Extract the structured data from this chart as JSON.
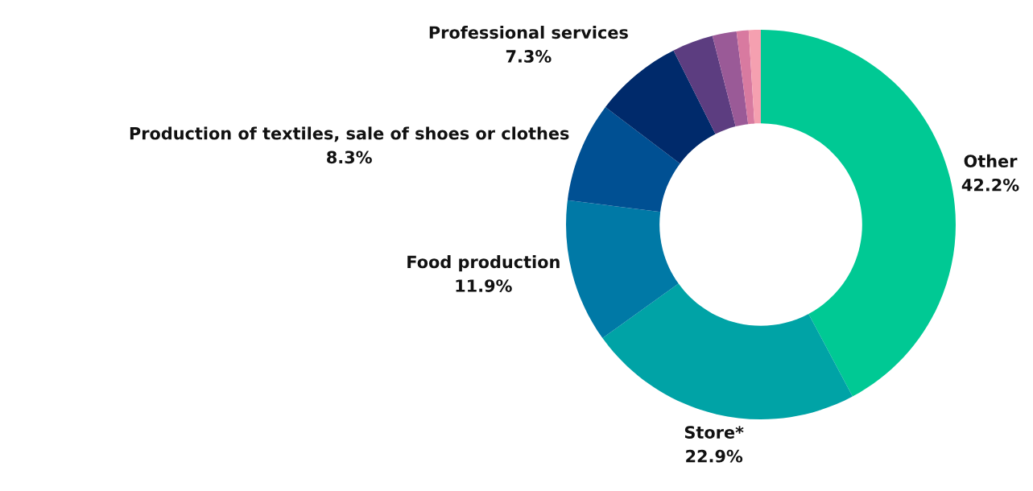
{
  "chart_data": {
    "type": "donut",
    "categories": [
      "Other",
      "Store*",
      "Food production",
      "Production of textiles, sale of shoes or clothes",
      "Professional services",
      null,
      null,
      null,
      null
    ],
    "values": [
      42.2,
      22.9,
      11.9,
      8.3,
      7.3,
      3.4,
      2.0,
      1.0,
      1.0
    ],
    "value_labels": [
      "42.2%",
      "22.9%",
      "11.9%",
      "8.3%",
      "7.3%",
      null,
      null,
      null,
      null
    ],
    "colors": [
      "#00c994",
      "#00a3a6",
      "#0079a6",
      "#005093",
      "#002a6b",
      "#5c3d80",
      "#9a5a97",
      "#d87aa0",
      "#f5a0b0"
    ]
  }
}
